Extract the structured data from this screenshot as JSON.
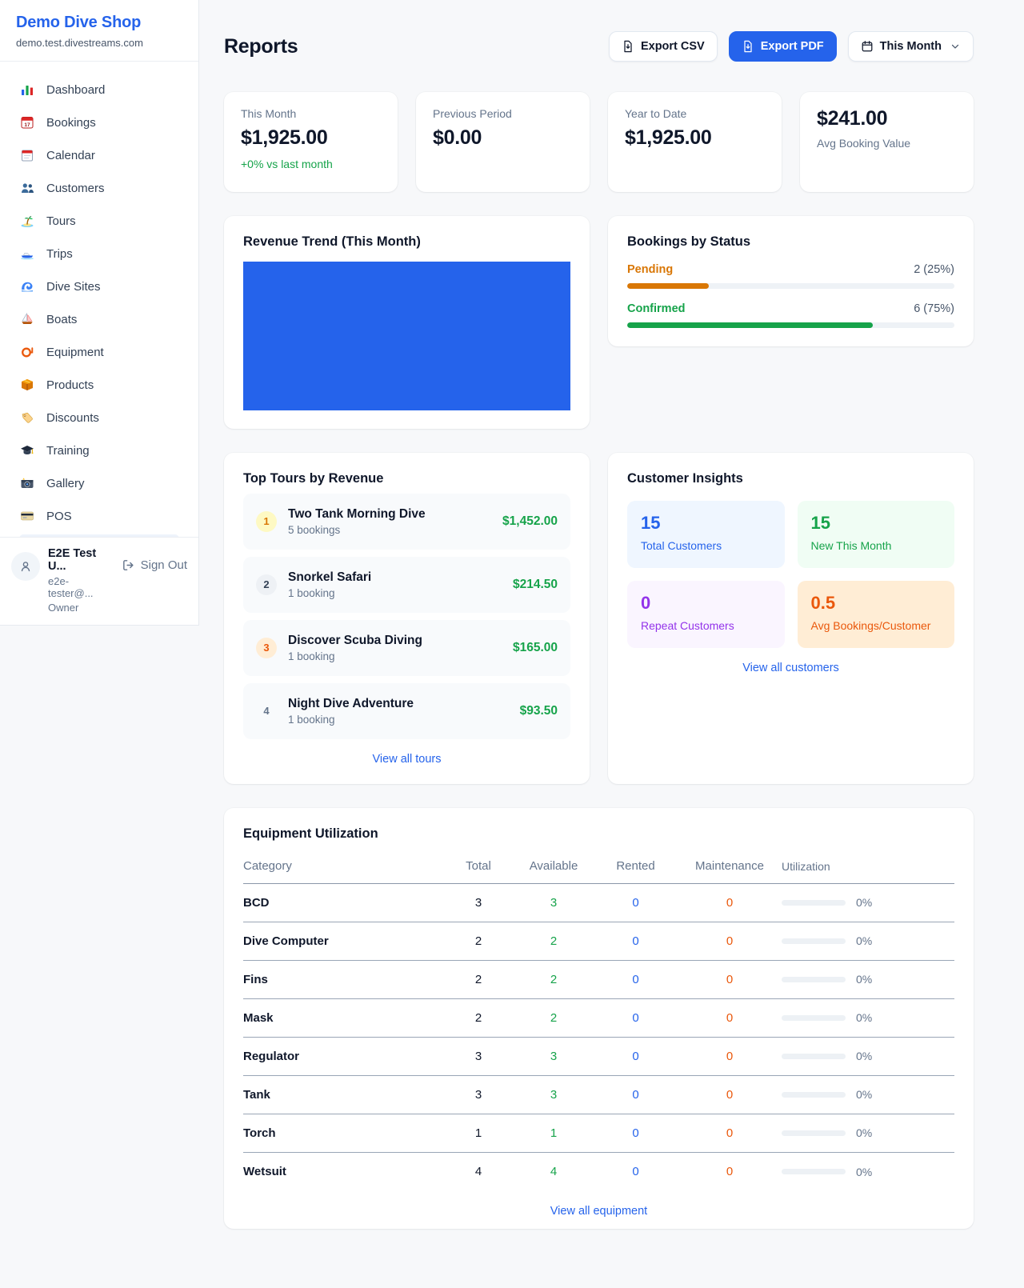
{
  "sidebar": {
    "shop_name": "Demo Dive Shop",
    "shop_domain": "demo.test.divestreams.com",
    "items": [
      {
        "label": "Dashboard",
        "icon": "bar-chart-icon"
      },
      {
        "label": "Bookings",
        "icon": "calendar-date-icon"
      },
      {
        "label": "Calendar",
        "icon": "calendar-icon"
      },
      {
        "label": "Customers",
        "icon": "people-icon"
      },
      {
        "label": "Tours",
        "icon": "island-icon"
      },
      {
        "label": "Trips",
        "icon": "speedboat-icon"
      },
      {
        "label": "Dive Sites",
        "icon": "wave-icon"
      },
      {
        "label": "Boats",
        "icon": "sailboat-icon"
      },
      {
        "label": "Equipment",
        "icon": "diving-mask-icon"
      },
      {
        "label": "Products",
        "icon": "package-icon"
      },
      {
        "label": "Discounts",
        "icon": "tag-icon"
      },
      {
        "label": "Training",
        "icon": "graduation-cap-icon"
      },
      {
        "label": "Gallery",
        "icon": "camera-icon"
      },
      {
        "label": "POS",
        "icon": "credit-card-icon"
      }
    ],
    "user": {
      "name": "E2E Test U...",
      "email": "e2e-tester@...",
      "role": "Owner",
      "sign_out_label": "Sign Out"
    }
  },
  "header": {
    "title": "Reports",
    "export_csv_label": "Export CSV",
    "export_pdf_label": "Export PDF",
    "period_label": "This Month"
  },
  "stats": [
    {
      "label": "This Month",
      "value": "$1,925.00",
      "delta": "+0% vs last month"
    },
    {
      "label": "Previous Period",
      "value": "$0.00"
    },
    {
      "label": "Year to Date",
      "value": "$1,925.00"
    },
    {
      "label": "Avg Booking Value",
      "value": "$241.00"
    }
  ],
  "revenue_trend": {
    "title": "Revenue Trend (This Month)",
    "fill_color": "#2563eb"
  },
  "bookings_by_status": {
    "title": "Bookings by Status",
    "rows": [
      {
        "label": "Pending",
        "display": "2 (25%)",
        "count": 2,
        "percent": 25,
        "color": "#d97706"
      },
      {
        "label": "Confirmed",
        "display": "6 (75%)",
        "count": 6,
        "percent": 75,
        "color": "#16a34a"
      }
    ]
  },
  "top_tours": {
    "title": "Top Tours by Revenue",
    "rows": [
      {
        "rank": "1",
        "name": "Two Tank Morning Dive",
        "bookings": "5 bookings",
        "revenue": "$1,452.00"
      },
      {
        "rank": "2",
        "name": "Snorkel Safari",
        "bookings": "1 booking",
        "revenue": "$214.50"
      },
      {
        "rank": "3",
        "name": "Discover Scuba Diving",
        "bookings": "1 booking",
        "revenue": "$165.00"
      },
      {
        "rank": "4",
        "name": "Night Dive Adventure",
        "bookings": "1 booking",
        "revenue": "$93.50"
      }
    ],
    "view_all_label": "View all tours"
  },
  "customer_insights": {
    "title": "Customer Insights",
    "tiles": [
      {
        "value": "15",
        "label": "Total Customers",
        "color": "#2563eb"
      },
      {
        "value": "15",
        "label": "New This Month",
        "color": "#16a34a"
      },
      {
        "value": "0",
        "label": "Repeat Customers",
        "color": "#9333ea"
      },
      {
        "value": "0.5",
        "label": "Avg Bookings/Customer",
        "color": "#ea580c"
      }
    ],
    "view_all_label": "View all customers"
  },
  "equipment": {
    "title": "Equipment Utilization",
    "columns": [
      "Category",
      "Total",
      "Available",
      "Rented",
      "Maintenance",
      "Utilization"
    ],
    "rows": [
      {
        "category": "BCD",
        "total": "3",
        "available": "3",
        "rented": "0",
        "maintenance": "0",
        "utilization": "0%"
      },
      {
        "category": "Dive Computer",
        "total": "2",
        "available": "2",
        "rented": "0",
        "maintenance": "0",
        "utilization": "0%"
      },
      {
        "category": "Fins",
        "total": "2",
        "available": "2",
        "rented": "0",
        "maintenance": "0",
        "utilization": "0%"
      },
      {
        "category": "Mask",
        "total": "2",
        "available": "2",
        "rented": "0",
        "maintenance": "0",
        "utilization": "0%"
      },
      {
        "category": "Regulator",
        "total": "3",
        "available": "3",
        "rented": "0",
        "maintenance": "0",
        "utilization": "0%"
      },
      {
        "category": "Tank",
        "total": "3",
        "available": "3",
        "rented": "0",
        "maintenance": "0",
        "utilization": "0%"
      },
      {
        "category": "Torch",
        "total": "1",
        "available": "1",
        "rented": "0",
        "maintenance": "0",
        "utilization": "0%"
      },
      {
        "category": "Wetsuit",
        "total": "4",
        "available": "4",
        "rented": "0",
        "maintenance": "0",
        "utilization": "0%"
      }
    ],
    "view_all_label": "View all equipment"
  },
  "colors": {
    "accent_blue": "#2563eb",
    "green": "#16a34a",
    "pending_amber": "#d97706",
    "orange": "#ea580c",
    "purple": "#9333ea"
  }
}
